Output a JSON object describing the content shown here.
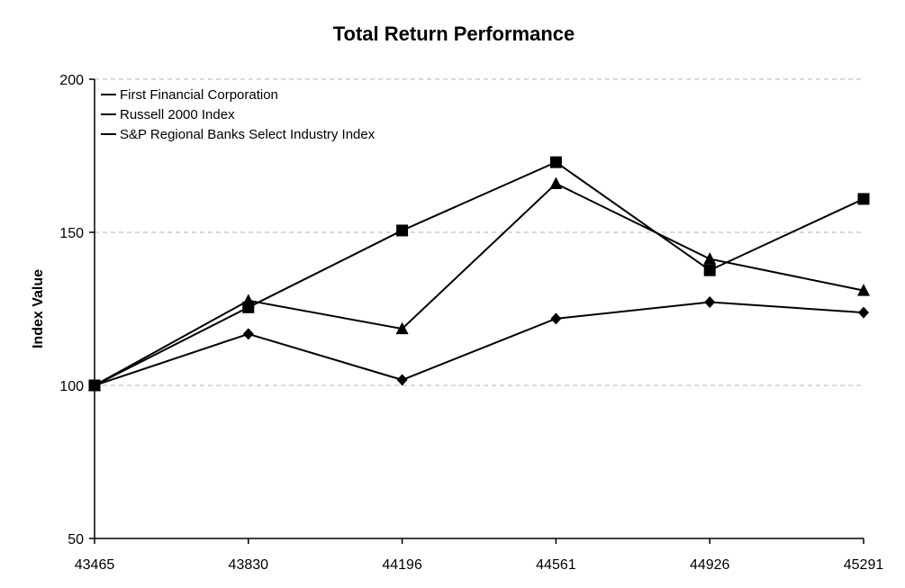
{
  "chart_data": {
    "type": "line",
    "title": "Total Return Performance",
    "xlabel": "",
    "ylabel": "Index Value",
    "x": [
      "43465",
      "43830",
      "44196",
      "44561",
      "44926",
      "45291"
    ],
    "ylim": [
      50,
      200
    ],
    "yticks": [
      "50",
      "100",
      "150",
      "200"
    ],
    "grid": "horizontal dashed",
    "legend_position": "top-left",
    "series": [
      {
        "name": "First Financial Corporation",
        "marker": "diamond",
        "values": [
          100,
          116.8,
          101.8,
          121.8,
          127.2,
          123.8
        ]
      },
      {
        "name": "Russell 2000 Index",
        "marker": "square",
        "values": [
          100,
          125.5,
          150.6,
          172.9,
          137.6,
          160.9
        ]
      },
      {
        "name": "S&P Regional Banks Select Industry Index",
        "marker": "triangle",
        "values": [
          100,
          127.7,
          118.5,
          165.9,
          141.3,
          131
        ]
      }
    ]
  }
}
